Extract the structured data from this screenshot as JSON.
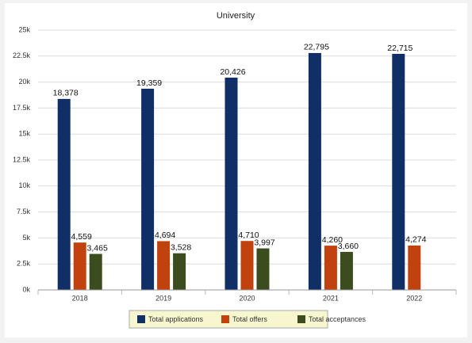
{
  "chart_data": {
    "type": "bar",
    "title": "University",
    "categories": [
      "2018",
      "2019",
      "2020",
      "2021",
      "2022"
    ],
    "series": [
      {
        "name": "Total applications",
        "color": "#0f2f66",
        "values": [
          18378,
          19359,
          20426,
          22795,
          22715
        ],
        "value_labels": [
          "18,378",
          "19,359",
          "20,426",
          "22,795",
          "22,715"
        ]
      },
      {
        "name": "Total offers",
        "color": "#c0420f",
        "values": [
          4559,
          4694,
          4710,
          4260,
          4274
        ],
        "value_labels": [
          "4,559",
          "4,694",
          "4,710",
          "4,260",
          "4,274"
        ]
      },
      {
        "name": "Total acceptances",
        "color": "#3b4d1f",
        "values": [
          3465,
          3528,
          3997,
          3660,
          null
        ],
        "value_labels": [
          "3,465",
          "3,528",
          "3,997",
          "3,660",
          null
        ]
      }
    ],
    "ylim": [
      0,
      25000
    ],
    "yticks": [
      {
        "value": 0,
        "label": "0k"
      },
      {
        "value": 2500,
        "label": "2.5k"
      },
      {
        "value": 5000,
        "label": "5k"
      },
      {
        "value": 7500,
        "label": "7.5k"
      },
      {
        "value": 10000,
        "label": "10k"
      },
      {
        "value": 12500,
        "label": "12.5k"
      },
      {
        "value": 15000,
        "label": "15k"
      },
      {
        "value": 17500,
        "label": "17.5k"
      },
      {
        "value": 20000,
        "label": "20k"
      },
      {
        "value": 22500,
        "label": "22.5k"
      },
      {
        "value": 25000,
        "label": "25k"
      }
    ],
    "grid": true
  }
}
